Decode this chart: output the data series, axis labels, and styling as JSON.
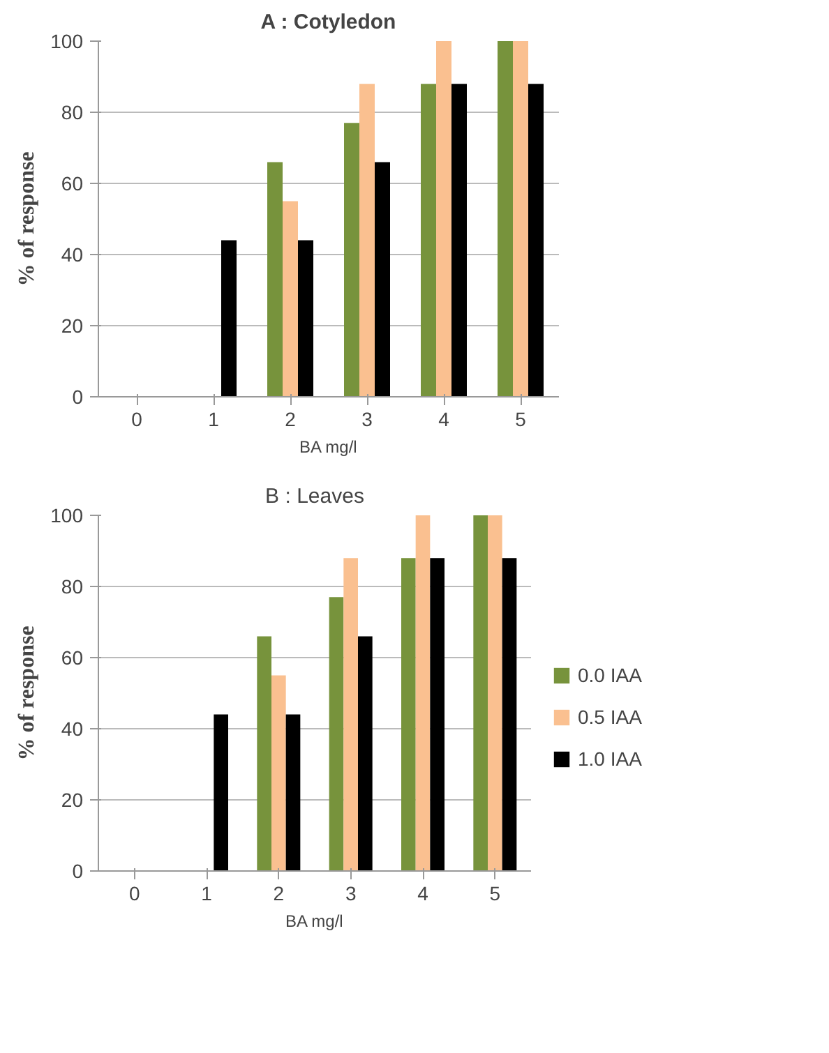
{
  "chart_data": [
    {
      "type": "bar",
      "title": "A : Cotyledon",
      "xlabel": "BA mg/l",
      "ylabel": "% of response",
      "categories": [
        "0",
        "1",
        "2",
        "3",
        "4",
        "5"
      ],
      "ylim": [
        0,
        100
      ],
      "yticks": [
        0,
        20,
        40,
        60,
        80,
        100
      ],
      "grid": "y",
      "series": [
        {
          "color": "#77933c",
          "values": [
            0,
            0,
            66,
            77,
            88,
            100
          ]
        },
        {
          "color": "#fac090",
          "values": [
            0,
            0,
            55,
            88,
            100,
            100
          ]
        },
        {
          "color": "#000000",
          "values": [
            0,
            44,
            44,
            66,
            88,
            88
          ]
        }
      ]
    },
    {
      "type": "bar",
      "title": "B : Leaves",
      "xlabel": "BA mg/l",
      "ylabel": "% of response",
      "categories": [
        "0",
        "1",
        "2",
        "3",
        "4",
        "5"
      ],
      "ylim": [
        0,
        100
      ],
      "yticks": [
        0,
        20,
        40,
        60,
        80,
        100
      ],
      "grid": "y",
      "legend": "right",
      "series": [
        {
          "name": "0.0 IAA",
          "color": "#77933c",
          "values": [
            0,
            0,
            66,
            77,
            88,
            100
          ]
        },
        {
          "name": "0.5 IAA",
          "color": "#fac090",
          "values": [
            0,
            0,
            55,
            88,
            100,
            100
          ]
        },
        {
          "name": "1.0 IAA",
          "color": "#000000",
          "values": [
            0,
            44,
            44,
            66,
            88,
            88
          ]
        }
      ]
    }
  ]
}
